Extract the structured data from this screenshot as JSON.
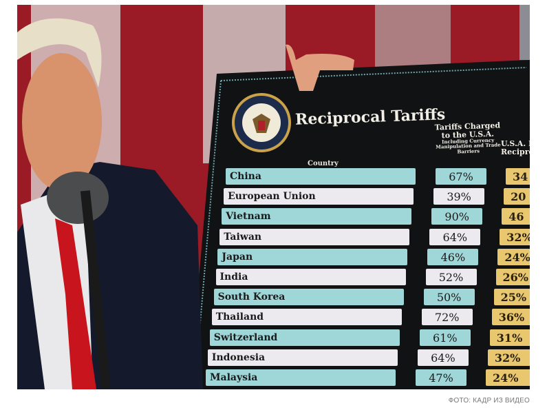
{
  "board": {
    "title": "Reciprocal Tariffs",
    "column_country": "Country",
    "column_charged": "Tariffs Charged to the U.S.A.",
    "column_charged_note": "Including Currency Manipulation and Trade Barriers",
    "column_reciprocal_partial": "U.S.A. D Recipro",
    "seal": "Seal of the President of the United States",
    "rows": [
      {
        "country": "China",
        "charged": "67%",
        "reciprocal": "34"
      },
      {
        "country": "European Union",
        "charged": "39%",
        "reciprocal": "20"
      },
      {
        "country": "Vietnam",
        "charged": "90%",
        "reciprocal": "46"
      },
      {
        "country": "Taiwan",
        "charged": "64%",
        "reciprocal": "32%"
      },
      {
        "country": "Japan",
        "charged": "46%",
        "reciprocal": "24%"
      },
      {
        "country": "India",
        "charged": "52%",
        "reciprocal": "26%"
      },
      {
        "country": "South Korea",
        "charged": "50%",
        "reciprocal": "25%"
      },
      {
        "country": "Thailand",
        "charged": "72%",
        "reciprocal": "36%"
      },
      {
        "country": "Switzerland",
        "charged": "61%",
        "reciprocal": "31%"
      },
      {
        "country": "Indonesia",
        "charged": "64%",
        "reciprocal": "32%"
      },
      {
        "country": "Malaysia",
        "charged": "47%",
        "reciprocal": "24%"
      }
    ]
  },
  "caption": "ФОТО: КАДР ИЗ ВИДЕО",
  "colors": {
    "teal": "#9fd6d8",
    "white": "#ece9ef",
    "yellow": "#e9c76f",
    "board": "#111214",
    "flag_red": "#8a1420"
  }
}
